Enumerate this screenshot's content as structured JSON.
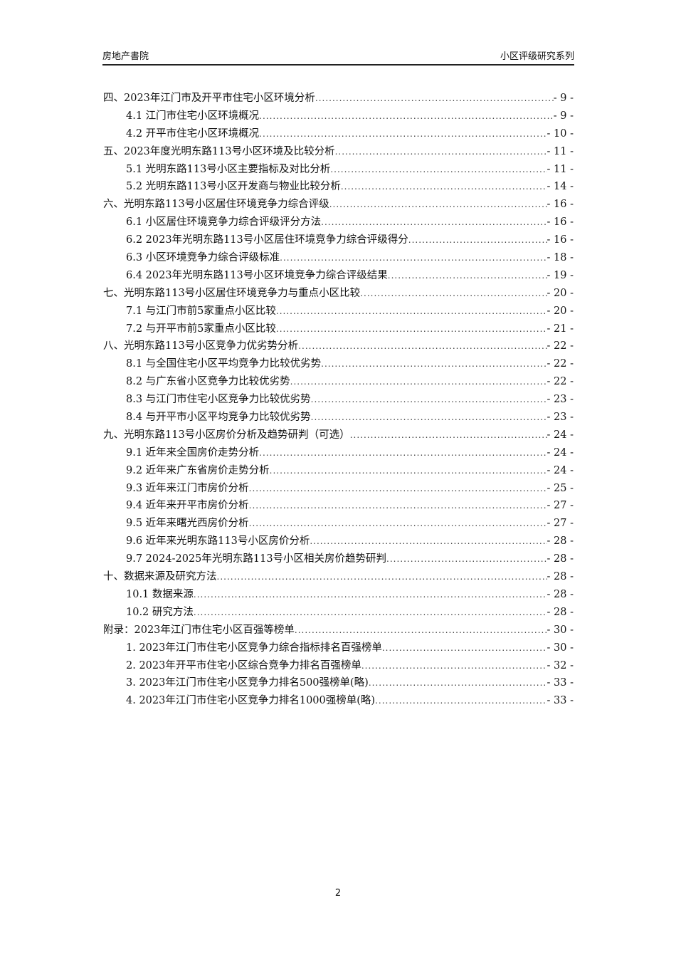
{
  "header": {
    "left": "房地产書院",
    "right": "小区评级研究系列"
  },
  "toc": [
    {
      "level": 0,
      "title": "四、2023年江门市及开平市住宅小区环境分析",
      "page": "- 9 -"
    },
    {
      "level": 1,
      "title": "4.1 江门市住宅小区环境概况",
      "page": "- 9 -"
    },
    {
      "level": 1,
      "title": "4.2 开平市住宅小区环境概况",
      "page": "- 10 -"
    },
    {
      "level": 0,
      "title": "五、2023年度光明东路113号小区环境及比较分析",
      "page": "- 11 -"
    },
    {
      "level": 1,
      "title": "5.1 光明东路113号小区主要指标及对比分析",
      "page": "- 11 -"
    },
    {
      "level": 1,
      "title": "5.2 光明东路113号小区开发商与物业比较分析",
      "page": "- 14 -"
    },
    {
      "level": 0,
      "title": "六、光明东路113号小区居住环境竞争力综合评级",
      "page": "- 16 -"
    },
    {
      "level": 1,
      "title": "6.1 小区居住环境竞争力综合评级评分方法",
      "page": "- 16 -"
    },
    {
      "level": 1,
      "title": "6.2 2023年光明东路113号小区居住环境竞争力综合评级得分",
      "page": "- 16 -"
    },
    {
      "level": 1,
      "title": "6.3 小区环境竞争力综合评级标准",
      "page": "- 18 -"
    },
    {
      "level": 1,
      "title": "6.4 2023年光明东路113号小区环境竞争力综合评级结果",
      "page": "- 19 -"
    },
    {
      "level": 0,
      "title": "七、光明东路113号小区居住环境竞争力与重点小区比较",
      "page": "- 20 -"
    },
    {
      "level": 1,
      "title": "7.1 与江门市前5家重点小区比较",
      "page": "- 20 -"
    },
    {
      "level": 1,
      "title": "7.2 与开平市前5家重点小区比较",
      "page": "- 21 -"
    },
    {
      "level": 0,
      "title": "八、光明东路113号小区竞争力优劣势分析",
      "page": "- 22 -"
    },
    {
      "level": 1,
      "title": "8.1 与全国住宅小区平均竞争力比较优劣势",
      "page": "- 22 -"
    },
    {
      "level": 1,
      "title": "8.2 与广东省小区竞争力比较优劣势",
      "page": "- 22 -"
    },
    {
      "level": 1,
      "title": "8.3 与江门市住宅小区竞争力比较优劣势",
      "page": "- 23 -"
    },
    {
      "level": 1,
      "title": "8.4 与开平市小区平均竞争力比较优劣势",
      "page": "- 23 -"
    },
    {
      "level": 0,
      "title": "九、光明东路113号小区房价分析及趋势研判（可选）",
      "page": "- 24 -"
    },
    {
      "level": 1,
      "title": "9.1 近年来全国房价走势分析",
      "page": "- 24 -"
    },
    {
      "level": 1,
      "title": "9.2 近年来广东省房价走势分析",
      "page": "- 24 -"
    },
    {
      "level": 1,
      "title": "9.3 近年来江门市房价分析",
      "page": "- 25 -"
    },
    {
      "level": 1,
      "title": "9.4 近年来开平市房价分析",
      "page": "- 27 -"
    },
    {
      "level": 1,
      "title": "9.5 近年来曙光西房价分析",
      "page": "- 27 -"
    },
    {
      "level": 1,
      "title": "9.6 近年来光明东路113号小区房价分析",
      "page": "- 28 -"
    },
    {
      "level": 1,
      "title": "9.7 2024-2025年光明东路113号小区相关房价趋势研判",
      "page": "- 28 -"
    },
    {
      "level": 0,
      "title": "十、数据来源及研究方法",
      "page": "- 28 -"
    },
    {
      "level": 1,
      "title": "10.1 数据来源",
      "page": "- 28 -"
    },
    {
      "level": 1,
      "title": "10.2 研究方法",
      "page": "- 28 -"
    },
    {
      "level": 0,
      "title": "附录：2023年江门市住宅小区百强等榜单",
      "page": "- 30 -"
    },
    {
      "level": 1,
      "title": "1.  2023年江门市住宅小区竞争力综合指标排名百强榜单",
      "page": "- 30 -"
    },
    {
      "level": 1,
      "title": "2.  2023年开平市住宅小区综合竞争力排名百强榜单",
      "page": "- 32 -"
    },
    {
      "level": 1,
      "title": "3.  2023年江门市住宅小区竞争力排名500强榜单(略)",
      "page": "- 33 -"
    },
    {
      "level": 1,
      "title": "4.  2023年江门市住宅小区竞争力排名1000强榜单(略)",
      "page": "- 33 -"
    }
  ],
  "page_number": "2"
}
